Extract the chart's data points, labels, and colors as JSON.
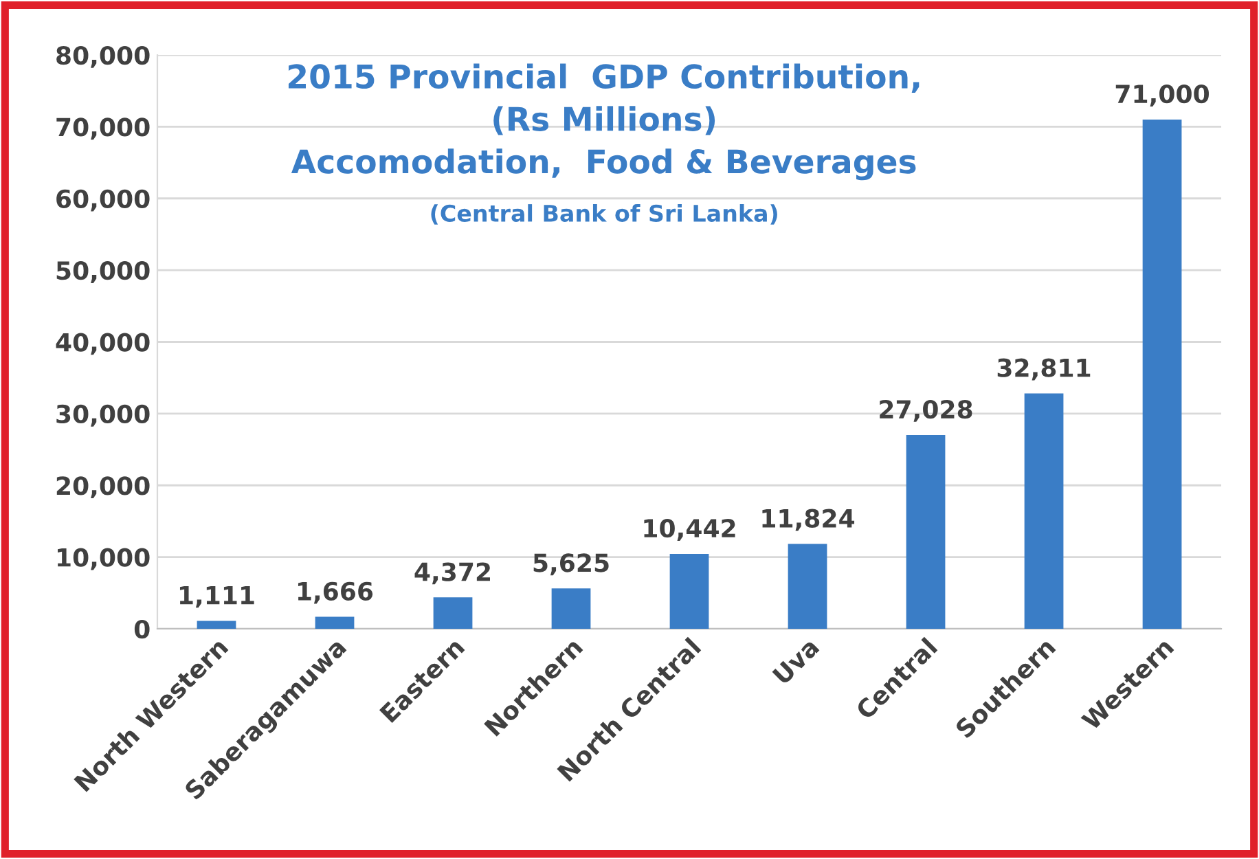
{
  "chart_data": {
    "type": "bar",
    "title": "2015 Provincial  GDP Contribution,\n(Rs Millions)\nAccomodation,  Food & Beverages",
    "subtitle": "(Central Bank of Sri Lanka)",
    "categories": [
      "North Western",
      "Saberagamuwa",
      "Eastern",
      "Northern",
      "North Central",
      "Uva",
      "Central",
      "Southern",
      "Western"
    ],
    "values": [
      1111,
      1666,
      4372,
      5625,
      10442,
      11824,
      27028,
      32811,
      71000
    ],
    "color": "#3a7dc6",
    "ylim": [
      0,
      80000
    ],
    "yticks": [
      {
        "value": 0,
        "label": "0"
      },
      {
        "value": 10000,
        "label": "10,000"
      },
      {
        "value": 20000,
        "label": "20,000"
      },
      {
        "value": 30000,
        "label": "30,000"
      },
      {
        "value": 40000,
        "label": "40,000"
      },
      {
        "value": 50000,
        "label": "50,000"
      },
      {
        "value": 60000,
        "label": "60,000"
      },
      {
        "value": 70000,
        "label": "70,000"
      },
      {
        "value": 80000,
        "label": "80,000"
      }
    ],
    "grid": "y",
    "value_labels": [
      "1,111",
      "1,666",
      "4,372",
      "5,625",
      "10,442",
      "11,824",
      "27,028",
      "32,811",
      "71,000"
    ]
  }
}
